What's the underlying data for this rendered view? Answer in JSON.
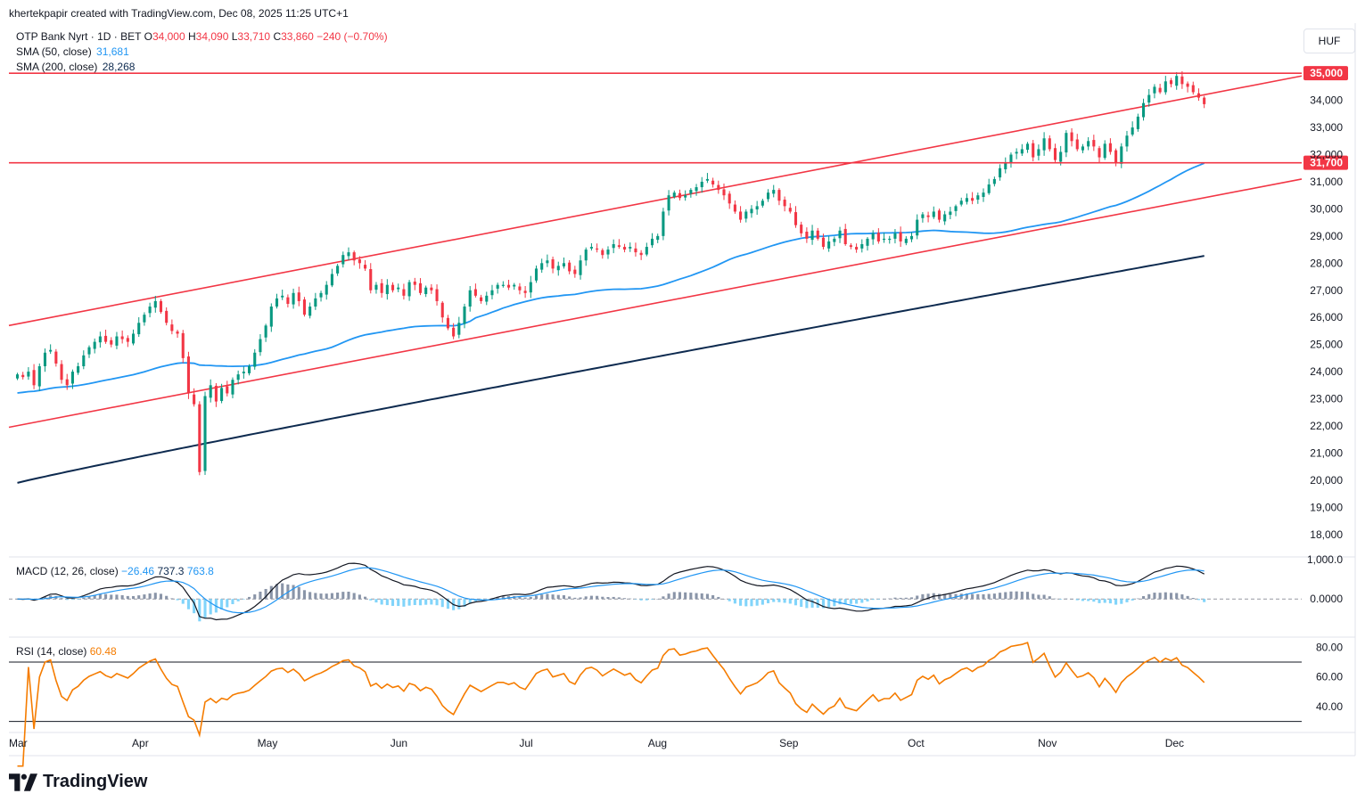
{
  "header": {
    "credit": "khertekpapir created with TradingView.com, Dec 08, 2025 11:25 UTC+1",
    "symbol": "OTP Bank Nyrt · 1D · BET",
    "ohlc": {
      "o_label": "O",
      "o": "34,000",
      "h_label": "H",
      "h": "34,090",
      "l_label": "L",
      "l": "33,710",
      "c_label": "C",
      "c": "33,860",
      "change": "−240 (−0.70%)"
    },
    "sma50": {
      "label": "SMA (50, close)",
      "value": "31,681"
    },
    "sma200": {
      "label": "SMA (200, close)",
      "value": "28,268"
    },
    "currency": "HUF"
  },
  "macd_legend": {
    "label": "MACD (12, 26, close)",
    "hist": "−26.46",
    "macd": "737.3",
    "signal": "763.8"
  },
  "rsi_legend": {
    "label": "RSI (14, close)",
    "value": "60.48"
  },
  "brand": "TradingView",
  "colors": {
    "up": "#089981",
    "down": "#f23645",
    "sma50": "#2196f3",
    "sma200": "#0d2a4f",
    "channel": "#f23645",
    "macd": "#131722",
    "signal": "#2196f3",
    "rsi": "#f57c00",
    "hist_pos": "#8a95a8",
    "hist_neg": "#81d4fa"
  },
  "chart_data": [
    {
      "type": "candlestick",
      "ylim": [
        17500,
        35400
      ],
      "y_ticks": [
        "18,000",
        "19,000",
        "20,000",
        "21,000",
        "22,000",
        "23,000",
        "24,000",
        "25,000",
        "26,000",
        "27,000",
        "28,000",
        "29,000",
        "30,000",
        "31,000",
        "32,000",
        "33,000",
        "34,000"
      ],
      "x_ticks": [
        "Mar",
        "Apr",
        "May",
        "Jun",
        "Jul",
        "Aug",
        "Sep",
        "Oct",
        "Nov",
        "Dec"
      ],
      "x_tick_dates": [
        "2025-03-01",
        "2025-04-01",
        "2025-05-01",
        "2025-06-01",
        "2025-07-01",
        "2025-08-01",
        "2025-09-01",
        "2025-10-01",
        "2025-11-01",
        "2025-12-01"
      ],
      "x_range": [
        "2025-03-01",
        "2025-12-31"
      ],
      "horizontal_levels": [
        {
          "value": 35000,
          "label": "35,000"
        },
        {
          "value": 31700,
          "label": "31,700"
        }
      ],
      "channel_lines": [
        {
          "from": [
            "2025-03-01",
            25700
          ],
          "to": [
            "2025-12-31",
            34900
          ]
        },
        {
          "from": [
            "2025-03-01",
            21950
          ],
          "to": [
            "2025-12-31",
            31100
          ]
        }
      ],
      "close": [
        23900,
        23800,
        24000,
        23500,
        24200,
        24700,
        24800,
        24300,
        23700,
        23500,
        24000,
        24200,
        24600,
        24900,
        25100,
        25300,
        25100,
        25000,
        25300,
        25200,
        25100,
        25400,
        25800,
        26100,
        26400,
        26600,
        26200,
        25800,
        25500,
        25400,
        24500,
        23200,
        22800,
        20300,
        23100,
        23500,
        22900,
        23400,
        23200,
        23700,
        23900,
        24000,
        24200,
        24700,
        25200,
        25700,
        26400,
        26700,
        26800,
        26500,
        26900,
        26600,
        26100,
        26400,
        26700,
        26900,
        27200,
        27600,
        27900,
        28300,
        28400,
        28100,
        28000,
        27800,
        27000,
        27200,
        26900,
        27200,
        27000,
        27100,
        26800,
        27300,
        27200,
        26900,
        27100,
        27000,
        26600,
        26000,
        25600,
        25300,
        25800,
        26400,
        27000,
        26800,
        26600,
        26800,
        27000,
        27200,
        27200,
        27100,
        27200,
        27000,
        26900,
        27300,
        27800,
        28000,
        28100,
        27800,
        27900,
        28000,
        27700,
        27600,
        28100,
        28500,
        28600,
        28500,
        28300,
        28500,
        28700,
        28600,
        28500,
        28600,
        28400,
        28300,
        28600,
        28900,
        29000,
        29900,
        30500,
        30600,
        30400,
        30500,
        30700,
        30800,
        31000,
        31100,
        30900,
        30700,
        30500,
        30200,
        29900,
        29600,
        29900,
        30000,
        30100,
        30300,
        30600,
        30700,
        30300,
        30100,
        29900,
        29400,
        29100,
        28900,
        29200,
        28900,
        28600,
        28800,
        28900,
        29200,
        28700,
        28600,
        28500,
        28700,
        28900,
        29100,
        28800,
        28900,
        28900,
        29100,
        28800,
        28900,
        29000,
        29600,
        29800,
        29700,
        29900,
        29600,
        29800,
        29900,
        30100,
        30300,
        30400,
        30300,
        30500,
        30600,
        30900,
        31100,
        31500,
        31700,
        32000,
        32100,
        32200,
        32400,
        31900,
        32200,
        32600,
        32200,
        31800,
        32100,
        32800,
        32500,
        32200,
        32300,
        32500,
        32300,
        31900,
        32400,
        32100,
        31700,
        32300,
        32700,
        33000,
        33400,
        33900,
        34200,
        34500,
        34300,
        34700,
        34600,
        34900,
        34600,
        34500,
        34300,
        34100,
        33860
      ]
    },
    {
      "type": "macd",
      "ylim": [
        -900,
        1000
      ],
      "y_ticks": [
        "0.0000",
        "1,000.0"
      ],
      "legend": [
        "MACD (12, 26, close)",
        "−26.46",
        "737.3",
        "763.8"
      ]
    },
    {
      "type": "line",
      "name": "RSI",
      "ylim": [
        25,
        85
      ],
      "y_ticks": [
        "40.00",
        "60.00",
        "80.00"
      ],
      "bands": [
        30,
        70
      ]
    }
  ]
}
